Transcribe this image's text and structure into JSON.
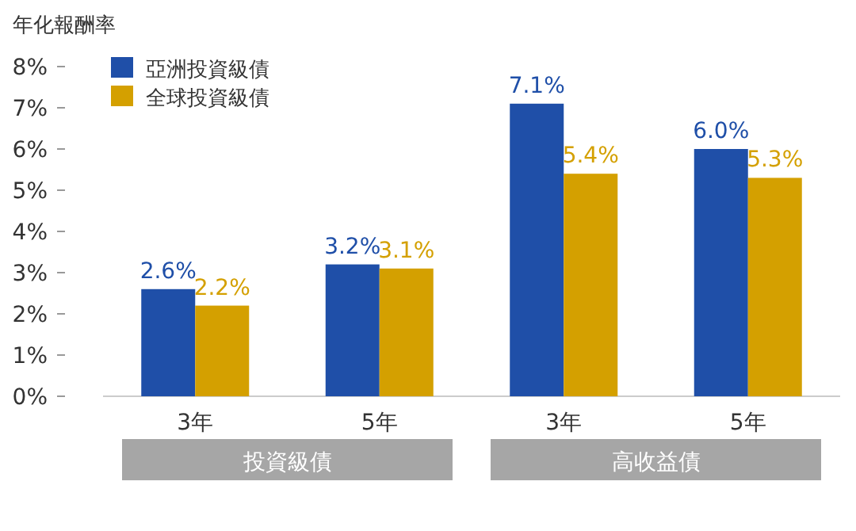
{
  "chart_data": {
    "type": "bar",
    "ylabel": "年化報酬率",
    "categories": [
      "3年",
      "5年",
      "3年",
      "5年"
    ],
    "series": [
      {
        "name": "亞洲投資級債",
        "color": "#1f4fa8",
        "values": [
          2.6,
          3.2,
          7.1,
          6.0
        ],
        "value_labels": [
          "2.6%",
          "3.2%",
          "7.1%",
          "6.0%"
        ]
      },
      {
        "name": "全球投資級債",
        "color": "#d4a000",
        "values": [
          2.2,
          3.1,
          5.4,
          5.3
        ],
        "value_labels": [
          "2.2%",
          "3.1%",
          "5.4%",
          "5.3%"
        ]
      }
    ],
    "ylim": [
      0,
      8
    ],
    "yticks": [
      {
        "value": 0,
        "label": "0%"
      },
      {
        "value": 1,
        "label": "1%"
      },
      {
        "value": 2,
        "label": "2%"
      },
      {
        "value": 3,
        "label": "3%"
      },
      {
        "value": 4,
        "label": "4%"
      },
      {
        "value": 5,
        "label": "5%"
      },
      {
        "value": 6,
        "label": "6%"
      },
      {
        "value": 7,
        "label": "7%"
      },
      {
        "value": 8,
        "label": "8%"
      }
    ],
    "legend": "top left",
    "annotations": [
      "投資級債",
      "高收益債"
    ]
  }
}
